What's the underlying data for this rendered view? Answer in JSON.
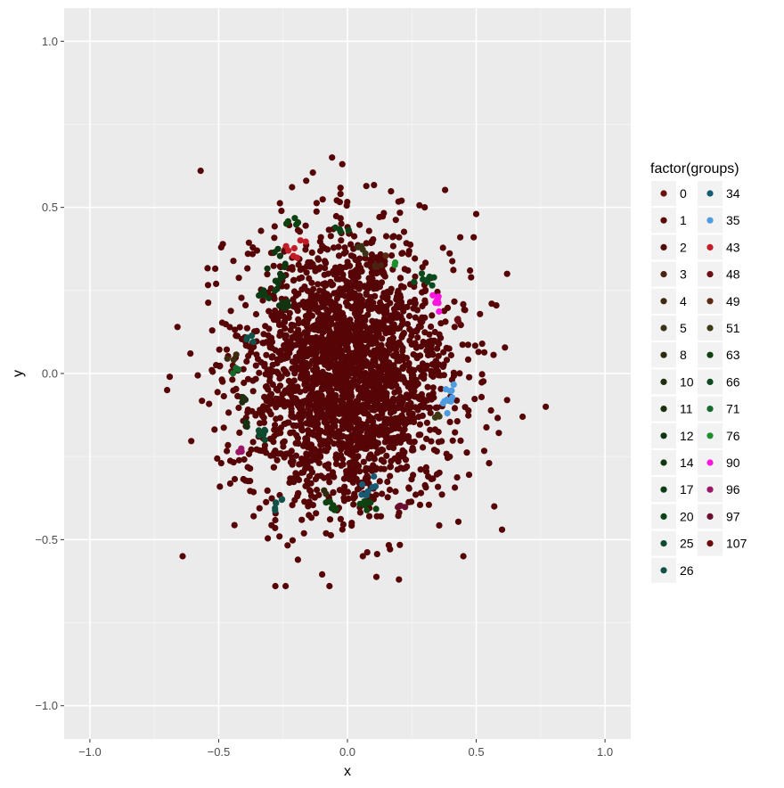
{
  "chart_data": {
    "type": "scatter",
    "xlabel": "x",
    "ylabel": "y",
    "xlim": [
      -1.1,
      1.1
    ],
    "ylim": [
      -1.1,
      1.1
    ],
    "x_ticks": [
      -1.0,
      -0.5,
      0.0,
      0.5,
      1.0
    ],
    "x_tick_labels": [
      "−1.0",
      "−0.5",
      "0.0",
      "0.5",
      "1.0"
    ],
    "y_ticks": [
      -1.0,
      -0.5,
      0.0,
      0.5,
      1.0
    ],
    "y_tick_labels": [
      "−1.0",
      "−0.5",
      "0.0",
      "0.5",
      "1.0"
    ],
    "grid": true,
    "background": "#ebebeb",
    "legend": {
      "title": "factor(groups)",
      "placement": "right",
      "entries": [
        {
          "label": "0",
          "color": "#6b0f10"
        },
        {
          "label": "1",
          "color": "#5a0a06"
        },
        {
          "label": "2",
          "color": "#4f0c08"
        },
        {
          "label": "3",
          "color": "#4a2410"
        },
        {
          "label": "4",
          "color": "#3e2a0f"
        },
        {
          "label": "5",
          "color": "#3a3315"
        },
        {
          "label": "8",
          "color": "#2f2a10"
        },
        {
          "label": "10",
          "color": "#1f2d10"
        },
        {
          "label": "11",
          "color": "#17300f"
        },
        {
          "label": "12",
          "color": "#123410"
        },
        {
          "label": "14",
          "color": "#0f3812"
        },
        {
          "label": "17",
          "color": "#0c3c14"
        },
        {
          "label": "20",
          "color": "#0b4216"
        },
        {
          "label": "25",
          "color": "#0d4a30"
        },
        {
          "label": "26",
          "color": "#115248"
        },
        {
          "label": "34",
          "color": "#165a74"
        },
        {
          "label": "35",
          "color": "#4f9be0"
        },
        {
          "label": "43",
          "color": "#c21d26"
        },
        {
          "label": "48",
          "color": "#6a0e14"
        },
        {
          "label": "49",
          "color": "#5a2a12"
        },
        {
          "label": "51",
          "color": "#3d3a14"
        },
        {
          "label": "63",
          "color": "#0e4210"
        },
        {
          "label": "66",
          "color": "#0b4a1c"
        },
        {
          "label": "71",
          "color": "#136a2a"
        },
        {
          "label": "76",
          "color": "#1c8f2c"
        },
        {
          "label": "90",
          "color": "#ff14e0"
        },
        {
          "label": "96",
          "color": "#9a1668"
        },
        {
          "label": "97",
          "color": "#6a0d2e"
        },
        {
          "label": "107",
          "color": "#6b0a0c"
        }
      ]
    },
    "main_series": {
      "group": "107",
      "distribution": "gaussian",
      "center": [
        0.0,
        0.0
      ],
      "sd": [
        0.2,
        0.2
      ],
      "n": 2600,
      "color": "#560506"
    },
    "outliers": [
      [
        -0.57,
        0.61
      ],
      [
        -0.02,
        0.63
      ],
      [
        -0.06,
        0.65
      ],
      [
        0.5,
        0.48
      ],
      [
        0.62,
        0.3
      ],
      [
        -0.66,
        0.14
      ],
      [
        -0.69,
        -0.01
      ],
      [
        -0.64,
        -0.55
      ],
      [
        0.77,
        -0.1
      ],
      [
        0.68,
        -0.13
      ],
      [
        0.6,
        -0.47
      ],
      [
        0.57,
        -0.4
      ],
      [
        -0.28,
        -0.64
      ],
      [
        -0.24,
        -0.64
      ],
      [
        0.45,
        -0.55
      ],
      [
        0.2,
        -0.62
      ],
      [
        -0.07,
        -0.64
      ],
      [
        -0.49,
        0.38
      ],
      [
        0.62,
        -0.08
      ],
      [
        -0.7,
        -0.05
      ],
      [
        0.21,
        0.52
      ],
      [
        -0.16,
        0.58
      ],
      [
        0.56,
        0.21
      ],
      [
        -0.61,
        0.06
      ],
      [
        0.49,
        0.41
      ],
      [
        -0.51,
        0.27
      ],
      [
        0.06,
        -0.55
      ],
      [
        0.55,
        -0.27
      ],
      [
        -0.49,
        -0.27
      ],
      [
        0.3,
        0.5
      ]
    ],
    "clusters": [
      {
        "group": "43",
        "color": "#c21d26",
        "center": [
          -0.2,
          0.37
        ],
        "spread": [
          0.02,
          0.015
        ],
        "n": 7
      },
      {
        "group": "90",
        "color": "#ff14e0",
        "center": [
          0.35,
          0.22
        ],
        "spread": [
          0.012,
          0.015
        ],
        "n": 8
      },
      {
        "group": "35",
        "color": "#4f9be0",
        "center": [
          0.39,
          -0.07
        ],
        "spread": [
          0.012,
          0.022
        ],
        "n": 10
      },
      {
        "group": "76",
        "color": "#1c8f2c",
        "center": [
          0.18,
          0.34
        ],
        "spread": [
          0.006,
          0.008
        ],
        "n": 2
      },
      {
        "group": "14",
        "color": "#0f3812",
        "center": [
          -0.27,
          0.3
        ],
        "spread": [
          0.02,
          0.035
        ],
        "n": 12
      },
      {
        "group": "17",
        "color": "#0c3c14",
        "center": [
          -0.33,
          0.24
        ],
        "spread": [
          0.02,
          0.012
        ],
        "n": 7
      },
      {
        "group": "12",
        "color": "#123410",
        "center": [
          -0.25,
          0.21
        ],
        "spread": [
          0.015,
          0.015
        ],
        "n": 6
      },
      {
        "group": "63",
        "color": "#0e4210",
        "center": [
          -0.23,
          0.46
        ],
        "spread": [
          0.015,
          0.008
        ],
        "n": 5
      },
      {
        "group": "20",
        "color": "#0b4216",
        "center": [
          -0.02,
          0.43
        ],
        "spread": [
          0.02,
          0.01
        ],
        "n": 6
      },
      {
        "group": "66",
        "color": "#0b4a1c",
        "center": [
          0.3,
          0.28
        ],
        "spread": [
          0.02,
          0.015
        ],
        "n": 8
      },
      {
        "group": "10",
        "color": "#1f2d10",
        "center": [
          -0.4,
          -0.07
        ],
        "spread": [
          0.01,
          0.012
        ],
        "n": 4
      },
      {
        "group": "11",
        "color": "#17300f",
        "center": [
          -0.39,
          -0.15
        ],
        "spread": [
          0.01,
          0.01
        ],
        "n": 4
      },
      {
        "group": "25",
        "color": "#0d4a30",
        "center": [
          -0.33,
          -0.18
        ],
        "spread": [
          0.015,
          0.015
        ],
        "n": 8
      },
      {
        "group": "71",
        "color": "#136a2a",
        "center": [
          -0.43,
          0.02
        ],
        "spread": [
          0.01,
          0.01
        ],
        "n": 3
      },
      {
        "group": "4",
        "color": "#3e2a0f",
        "center": [
          -0.46,
          0.05
        ],
        "spread": [
          0.015,
          0.006
        ],
        "n": 3
      },
      {
        "group": "26",
        "color": "#115248",
        "center": [
          -0.37,
          0.1
        ],
        "spread": [
          0.012,
          0.012
        ],
        "n": 4
      },
      {
        "group": "34",
        "color": "#165a74",
        "center": [
          0.07,
          -0.33
        ],
        "spread": [
          0.015,
          0.02
        ],
        "n": 8
      },
      {
        "group": "26",
        "color": "#115248",
        "center": [
          -0.27,
          -0.39
        ],
        "spread": [
          0.012,
          0.012
        ],
        "n": 6
      },
      {
        "group": "63",
        "color": "#0e4210",
        "center": [
          -0.06,
          -0.4
        ],
        "spread": [
          0.015,
          0.012
        ],
        "n": 7
      },
      {
        "group": "63",
        "color": "#0e4210",
        "center": [
          0.08,
          -0.4
        ],
        "spread": [
          0.015,
          0.012
        ],
        "n": 7
      },
      {
        "group": "97",
        "color": "#6a0d2e",
        "center": [
          0.2,
          -0.4
        ],
        "spread": [
          0.012,
          0.006
        ],
        "n": 4
      },
      {
        "group": "96",
        "color": "#9a1668",
        "center": [
          -0.42,
          -0.24
        ],
        "spread": [
          0.008,
          0.01
        ],
        "n": 3
      },
      {
        "group": "51",
        "color": "#3d3a14",
        "center": [
          0.35,
          -0.13
        ],
        "spread": [
          0.006,
          0.01
        ],
        "n": 3
      },
      {
        "group": "5",
        "color": "#3a3315",
        "center": [
          0.05,
          0.37
        ],
        "spread": [
          0.015,
          0.015
        ],
        "n": 4
      },
      {
        "group": "3",
        "color": "#4a2410",
        "center": [
          0.13,
          0.32
        ],
        "spread": [
          0.02,
          0.006
        ],
        "n": 4
      },
      {
        "group": "8",
        "color": "#2f2a10",
        "center": [
          -0.08,
          -0.36
        ],
        "spread": [
          0.008,
          0.008
        ],
        "n": 2
      },
      {
        "group": "49",
        "color": "#5a2a12",
        "center": [
          0.14,
          0.36
        ],
        "spread": [
          0.008,
          0.008
        ],
        "n": 2
      },
      {
        "group": "48",
        "color": "#6a0e14",
        "center": [
          0.42,
          0.16
        ],
        "spread": [
          0.01,
          0.01
        ],
        "n": 3
      }
    ]
  }
}
